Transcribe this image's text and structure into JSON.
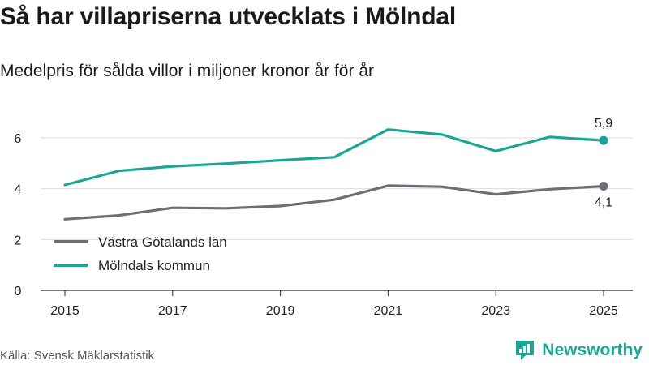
{
  "header": {
    "title": "Så har villapriserna utvecklats i Mölndal",
    "subtitle": "Medelpris för sålda villor i miljoner kronor år för år"
  },
  "footer": {
    "source": "Källa: Svensk Mäklarstatistik",
    "brand": "Newsworthy"
  },
  "colors": {
    "molndal": "#1aa597",
    "vastra": "#6f6d77",
    "grid": "#dddddd"
  },
  "chart_data": {
    "type": "line",
    "title": "Så har villapriserna utvecklats i Mölndal",
    "subtitle": "Medelpris för sålda villor i miljoner kronor år för år",
    "xlabel": "",
    "ylabel": "",
    "x": [
      2015,
      2016,
      2017,
      2018,
      2019,
      2020,
      2021,
      2022,
      2023,
      2024,
      2025
    ],
    "x_ticks": [
      "2015",
      "2017",
      "2019",
      "2021",
      "2023",
      "2025"
    ],
    "y_ticks": [
      "0",
      "2",
      "4",
      "6"
    ],
    "ylim": [
      0,
      7
    ],
    "grid": true,
    "legend_position": "bottom-left",
    "series": [
      {
        "name": "Västra Götalands län",
        "color_key": "vastra",
        "values": [
          2.8,
          2.95,
          3.25,
          3.23,
          3.32,
          3.57,
          4.12,
          4.08,
          3.78,
          3.98,
          4.1
        ],
        "end_label": "4,1"
      },
      {
        "name": "Mölndals kommun",
        "color_key": "molndal",
        "values": [
          4.15,
          4.7,
          4.88,
          4.99,
          5.12,
          5.24,
          6.33,
          6.13,
          5.48,
          6.04,
          5.9
        ],
        "end_label": "5,9"
      }
    ]
  }
}
